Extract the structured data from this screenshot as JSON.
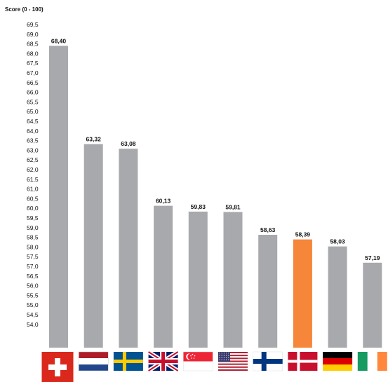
{
  "chart_data": {
    "type": "bar",
    "ylabel": "Score (0 - 100)",
    "ylim": [
      53.6,
      69.5
    ],
    "y_ticks": [
      "54,0",
      "54,5",
      "55,0",
      "55,5",
      "56,0",
      "56,5",
      "57,0",
      "57,5",
      "58,0",
      "58,5",
      "59,0",
      "59,5",
      "60,0",
      "60,5",
      "61,0",
      "61,5",
      "62,0",
      "62,5",
      "63,0",
      "63,5",
      "64,0",
      "64,5",
      "65,0",
      "65,5",
      "66,0",
      "66,5",
      "67,0",
      "67,5",
      "68,0",
      "68,5",
      "69,0",
      "69,5"
    ],
    "grid": false,
    "categories": [
      "Switzerland",
      "Netherlands",
      "Sweden",
      "United Kingdom",
      "Singapore",
      "United States",
      "Finland",
      "Denmark",
      "Germany",
      "Ireland"
    ],
    "values": [
      68.4,
      63.32,
      63.08,
      60.13,
      59.83,
      59.81,
      58.63,
      58.39,
      58.03,
      57.19
    ],
    "value_labels": [
      "68,40",
      "63,32",
      "63,08",
      "60,13",
      "59,83",
      "59,81",
      "58,63",
      "58,39",
      "58,03",
      "57,19"
    ],
    "icons": [
      "flag-switzerland",
      "flag-netherlands",
      "flag-sweden",
      "flag-united-kingdom",
      "flag-singapore",
      "flag-united-states",
      "flag-finland",
      "flag-denmark",
      "flag-germany",
      "flag-ireland"
    ],
    "colors": {
      "bar": "#a7a9ac",
      "highlight": "#f5863a"
    },
    "highlight_index": 7
  }
}
